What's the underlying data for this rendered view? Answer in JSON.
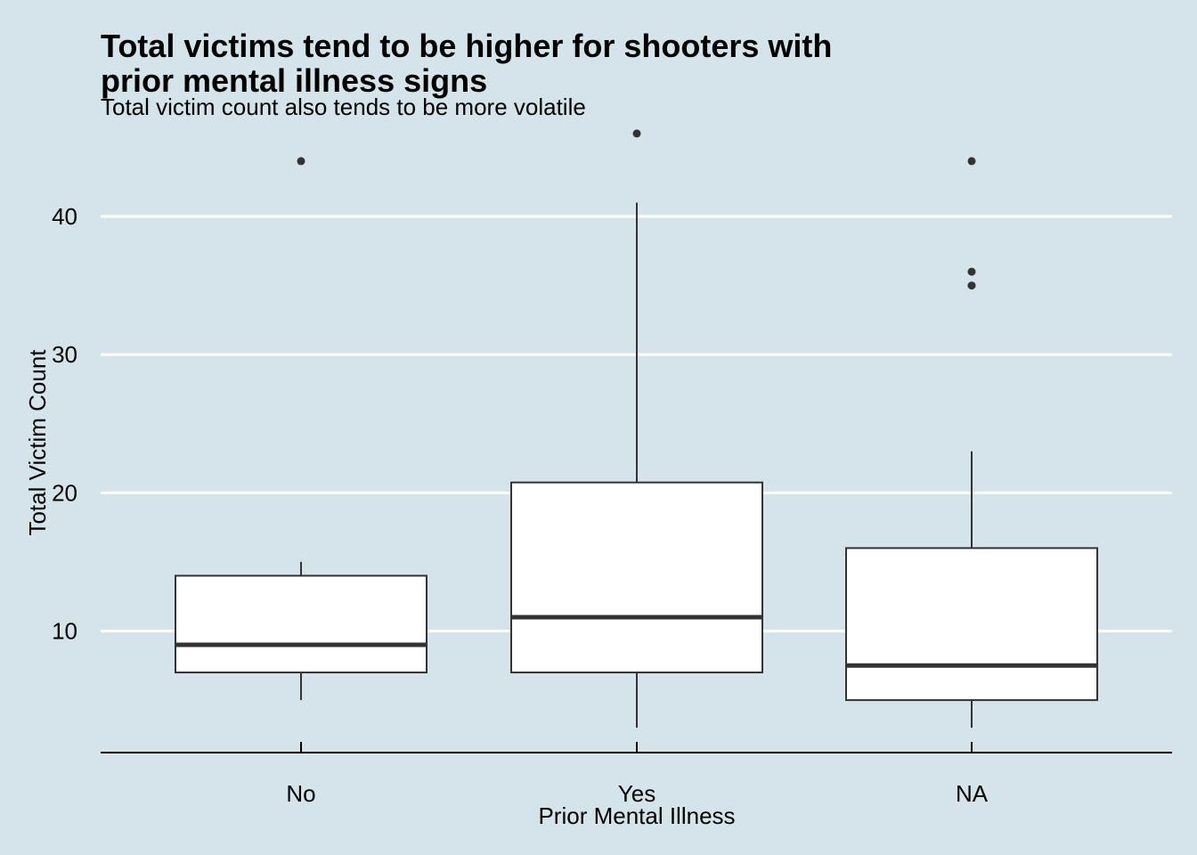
{
  "colors": {
    "background": "#d5e4eb",
    "gridline": "#ffffff",
    "box_fill": "#ffffff",
    "box_stroke": "#333333",
    "outlier": "#333333",
    "axis_line": "#000000"
  },
  "chart_data": {
    "type": "boxplot",
    "title_line1": "Total victims tend to be higher for shooters with",
    "title_line2": "prior mental illness signs",
    "subtitle": "Total victim count also tends to be more volatile",
    "xlabel": "Prior Mental Illness",
    "ylabel": "Total Victim Count",
    "ylim": [
      0.5,
      46
    ],
    "yticks": [
      10,
      20,
      30,
      40
    ],
    "ytick_labels": [
      "10",
      "20",
      "30",
      "40"
    ],
    "grid": "horizontal major only",
    "categories": [
      "No",
      "Yes",
      "NA"
    ],
    "boxes": [
      {
        "category": "No",
        "whisker_low": 5,
        "q1": 7,
        "median": 9,
        "q3": 14,
        "whisker_high": 15,
        "outliers": [
          44
        ]
      },
      {
        "category": "Yes",
        "whisker_low": 3,
        "q1": 7,
        "median": 11,
        "q3": 20.75,
        "whisker_high": 41,
        "outliers": [
          46
        ]
      },
      {
        "category": "NA",
        "whisker_low": 3,
        "q1": 5,
        "median": 7.5,
        "q3": 16,
        "whisker_high": 23,
        "outliers": [
          35,
          36,
          44
        ]
      }
    ]
  }
}
